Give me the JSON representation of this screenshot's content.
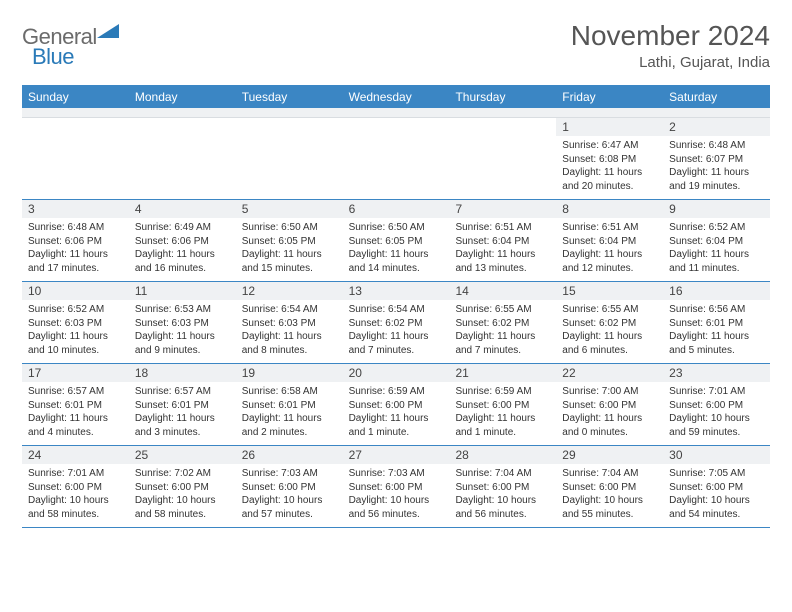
{
  "brand": {
    "name1": "General",
    "name2": "Blue"
  },
  "title": "November 2024",
  "subtitle": "Lathi, Gujarat, India",
  "colors": {
    "header_bar": "#3b86c4",
    "daynum_bg": "#eff1f3",
    "week_divider": "#3b86c4",
    "text": "#333333"
  },
  "dow": [
    "Sunday",
    "Monday",
    "Tuesday",
    "Wednesday",
    "Thursday",
    "Friday",
    "Saturday"
  ],
  "weeks": [
    [
      {
        "n": "",
        "sr": "",
        "ss": "",
        "dl": ""
      },
      {
        "n": "",
        "sr": "",
        "ss": "",
        "dl": ""
      },
      {
        "n": "",
        "sr": "",
        "ss": "",
        "dl": ""
      },
      {
        "n": "",
        "sr": "",
        "ss": "",
        "dl": ""
      },
      {
        "n": "",
        "sr": "",
        "ss": "",
        "dl": ""
      },
      {
        "n": "1",
        "sr": "Sunrise: 6:47 AM",
        "ss": "Sunset: 6:08 PM",
        "dl": "Daylight: 11 hours and 20 minutes."
      },
      {
        "n": "2",
        "sr": "Sunrise: 6:48 AM",
        "ss": "Sunset: 6:07 PM",
        "dl": "Daylight: 11 hours and 19 minutes."
      }
    ],
    [
      {
        "n": "3",
        "sr": "Sunrise: 6:48 AM",
        "ss": "Sunset: 6:06 PM",
        "dl": "Daylight: 11 hours and 17 minutes."
      },
      {
        "n": "4",
        "sr": "Sunrise: 6:49 AM",
        "ss": "Sunset: 6:06 PM",
        "dl": "Daylight: 11 hours and 16 minutes."
      },
      {
        "n": "5",
        "sr": "Sunrise: 6:50 AM",
        "ss": "Sunset: 6:05 PM",
        "dl": "Daylight: 11 hours and 15 minutes."
      },
      {
        "n": "6",
        "sr": "Sunrise: 6:50 AM",
        "ss": "Sunset: 6:05 PM",
        "dl": "Daylight: 11 hours and 14 minutes."
      },
      {
        "n": "7",
        "sr": "Sunrise: 6:51 AM",
        "ss": "Sunset: 6:04 PM",
        "dl": "Daylight: 11 hours and 13 minutes."
      },
      {
        "n": "8",
        "sr": "Sunrise: 6:51 AM",
        "ss": "Sunset: 6:04 PM",
        "dl": "Daylight: 11 hours and 12 minutes."
      },
      {
        "n": "9",
        "sr": "Sunrise: 6:52 AM",
        "ss": "Sunset: 6:04 PM",
        "dl": "Daylight: 11 hours and 11 minutes."
      }
    ],
    [
      {
        "n": "10",
        "sr": "Sunrise: 6:52 AM",
        "ss": "Sunset: 6:03 PM",
        "dl": "Daylight: 11 hours and 10 minutes."
      },
      {
        "n": "11",
        "sr": "Sunrise: 6:53 AM",
        "ss": "Sunset: 6:03 PM",
        "dl": "Daylight: 11 hours and 9 minutes."
      },
      {
        "n": "12",
        "sr": "Sunrise: 6:54 AM",
        "ss": "Sunset: 6:03 PM",
        "dl": "Daylight: 11 hours and 8 minutes."
      },
      {
        "n": "13",
        "sr": "Sunrise: 6:54 AM",
        "ss": "Sunset: 6:02 PM",
        "dl": "Daylight: 11 hours and 7 minutes."
      },
      {
        "n": "14",
        "sr": "Sunrise: 6:55 AM",
        "ss": "Sunset: 6:02 PM",
        "dl": "Daylight: 11 hours and 7 minutes."
      },
      {
        "n": "15",
        "sr": "Sunrise: 6:55 AM",
        "ss": "Sunset: 6:02 PM",
        "dl": "Daylight: 11 hours and 6 minutes."
      },
      {
        "n": "16",
        "sr": "Sunrise: 6:56 AM",
        "ss": "Sunset: 6:01 PM",
        "dl": "Daylight: 11 hours and 5 minutes."
      }
    ],
    [
      {
        "n": "17",
        "sr": "Sunrise: 6:57 AM",
        "ss": "Sunset: 6:01 PM",
        "dl": "Daylight: 11 hours and 4 minutes."
      },
      {
        "n": "18",
        "sr": "Sunrise: 6:57 AM",
        "ss": "Sunset: 6:01 PM",
        "dl": "Daylight: 11 hours and 3 minutes."
      },
      {
        "n": "19",
        "sr": "Sunrise: 6:58 AM",
        "ss": "Sunset: 6:01 PM",
        "dl": "Daylight: 11 hours and 2 minutes."
      },
      {
        "n": "20",
        "sr": "Sunrise: 6:59 AM",
        "ss": "Sunset: 6:00 PM",
        "dl": "Daylight: 11 hours and 1 minute."
      },
      {
        "n": "21",
        "sr": "Sunrise: 6:59 AM",
        "ss": "Sunset: 6:00 PM",
        "dl": "Daylight: 11 hours and 1 minute."
      },
      {
        "n": "22",
        "sr": "Sunrise: 7:00 AM",
        "ss": "Sunset: 6:00 PM",
        "dl": "Daylight: 11 hours and 0 minutes."
      },
      {
        "n": "23",
        "sr": "Sunrise: 7:01 AM",
        "ss": "Sunset: 6:00 PM",
        "dl": "Daylight: 10 hours and 59 minutes."
      }
    ],
    [
      {
        "n": "24",
        "sr": "Sunrise: 7:01 AM",
        "ss": "Sunset: 6:00 PM",
        "dl": "Daylight: 10 hours and 58 minutes."
      },
      {
        "n": "25",
        "sr": "Sunrise: 7:02 AM",
        "ss": "Sunset: 6:00 PM",
        "dl": "Daylight: 10 hours and 58 minutes."
      },
      {
        "n": "26",
        "sr": "Sunrise: 7:03 AM",
        "ss": "Sunset: 6:00 PM",
        "dl": "Daylight: 10 hours and 57 minutes."
      },
      {
        "n": "27",
        "sr": "Sunrise: 7:03 AM",
        "ss": "Sunset: 6:00 PM",
        "dl": "Daylight: 10 hours and 56 minutes."
      },
      {
        "n": "28",
        "sr": "Sunrise: 7:04 AM",
        "ss": "Sunset: 6:00 PM",
        "dl": "Daylight: 10 hours and 56 minutes."
      },
      {
        "n": "29",
        "sr": "Sunrise: 7:04 AM",
        "ss": "Sunset: 6:00 PM",
        "dl": "Daylight: 10 hours and 55 minutes."
      },
      {
        "n": "30",
        "sr": "Sunrise: 7:05 AM",
        "ss": "Sunset: 6:00 PM",
        "dl": "Daylight: 10 hours and 54 minutes."
      }
    ]
  ]
}
